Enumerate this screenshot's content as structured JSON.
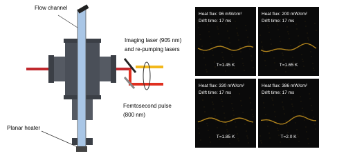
{
  "diagram": {
    "labels": {
      "flow_channel": "Flow channel",
      "imaging_laser": "Imaging laser (905 nm)",
      "repumping": "and re-pumping lasers",
      "femtosecond": "Femtosecond pulse",
      "femtosecond_wavelength": "(800 nm)",
      "planar_heater": "Planar heater"
    }
  },
  "panels": [
    {
      "heat_flux": "Heat flux: 96 mW/cm²",
      "drift_time": "Drift time: 17 ms",
      "temperature": "T=1.45 K"
    },
    {
      "heat_flux": "Heat flux: 200 mW/cm²",
      "drift_time": "Drift time: 17 ms",
      "temperature": "T=1.65 K"
    },
    {
      "heat_flux": "Heat flux: 330 mW/cm²",
      "drift_time": "Drift time: 17 ms",
      "temperature": "T=1.85 K"
    },
    {
      "heat_flux": "Heat flux: 386 mW/cm²",
      "drift_time": "Drift time: 17 ms",
      "temperature": "T=2.0 K"
    }
  ]
}
